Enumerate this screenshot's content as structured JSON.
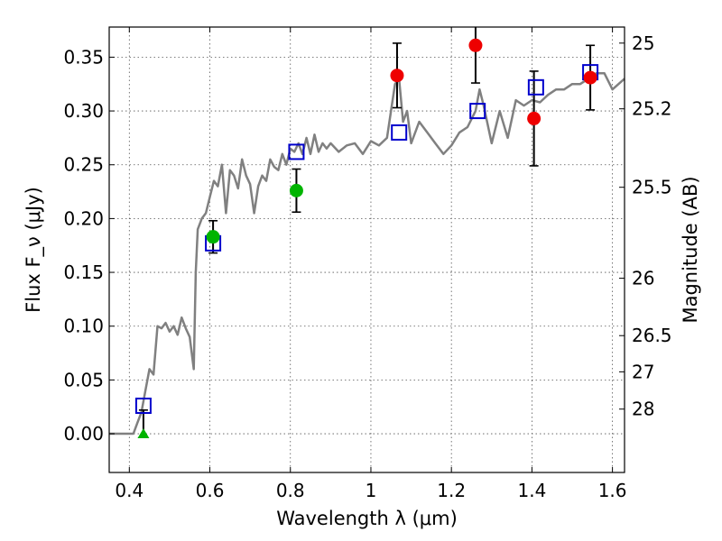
{
  "chart_data": {
    "type": "scatter",
    "xlabel": "Wavelength λ (μm)",
    "ylabel": "Flux F_ν (μJy)",
    "ylabel_right": "Magnitude (AB)",
    "xlim": [
      0.35,
      1.63
    ],
    "ylim": [
      -0.036,
      0.378
    ],
    "grid": true,
    "x_ticks": [
      0.4,
      0.6,
      0.8,
      1.0,
      1.2,
      1.4,
      1.6
    ],
    "x_tick_labels": [
      "0.4",
      "0.6",
      "0.8",
      "1",
      "1.2",
      "1.4",
      "1.6"
    ],
    "y_ticks": [
      0.0,
      0.05,
      0.1,
      0.15,
      0.2,
      0.25,
      0.3,
      0.35
    ],
    "y_tick_labels": [
      "0.00",
      "0.05",
      "0.10",
      "0.15",
      "0.20",
      "0.25",
      "0.30",
      "0.35"
    ],
    "mag_ticks": [
      25,
      25.2,
      25.5,
      26,
      26.5,
      27,
      28
    ],
    "mag_tick_labels": [
      "25",
      "25.2",
      "25.5",
      "26",
      "26.5",
      "27",
      "28"
    ],
    "colors": {
      "spectrum": "#808080",
      "model": "#0000cc",
      "green": "#00b400",
      "red": "#ee0000",
      "errorbar": "#000000"
    },
    "series": [
      {
        "kind": "spectrum",
        "x": [
          0.35,
          0.41,
          0.42,
          0.43,
          0.44,
          0.45,
          0.46,
          0.47,
          0.48,
          0.49,
          0.5,
          0.51,
          0.52,
          0.53,
          0.54,
          0.55,
          0.56,
          0.565,
          0.57,
          0.58,
          0.59,
          0.6,
          0.61,
          0.62,
          0.63,
          0.64,
          0.65,
          0.66,
          0.67,
          0.68,
          0.69,
          0.7,
          0.71,
          0.72,
          0.73,
          0.74,
          0.75,
          0.76,
          0.77,
          0.78,
          0.79,
          0.8,
          0.81,
          0.82,
          0.83,
          0.84,
          0.85,
          0.86,
          0.87,
          0.88,
          0.89,
          0.9,
          0.92,
          0.94,
          0.96,
          0.98,
          1.0,
          1.02,
          1.04,
          1.06,
          1.07,
          1.08,
          1.09,
          1.1,
          1.12,
          1.14,
          1.16,
          1.18,
          1.2,
          1.22,
          1.24,
          1.26,
          1.27,
          1.28,
          1.3,
          1.32,
          1.34,
          1.36,
          1.38,
          1.4,
          1.42,
          1.44,
          1.46,
          1.48,
          1.5,
          1.52,
          1.54,
          1.56,
          1.58,
          1.6,
          1.63
        ],
        "y": [
          0.0,
          0.0,
          0.01,
          0.02,
          0.04,
          0.06,
          0.055,
          0.1,
          0.098,
          0.103,
          0.095,
          0.1,
          0.092,
          0.108,
          0.098,
          0.09,
          0.06,
          0.15,
          0.19,
          0.2,
          0.205,
          0.22,
          0.235,
          0.23,
          0.25,
          0.205,
          0.245,
          0.24,
          0.228,
          0.255,
          0.24,
          0.232,
          0.205,
          0.23,
          0.24,
          0.235,
          0.255,
          0.248,
          0.245,
          0.26,
          0.25,
          0.265,
          0.262,
          0.27,
          0.26,
          0.275,
          0.26,
          0.278,
          0.262,
          0.27,
          0.265,
          0.27,
          0.262,
          0.268,
          0.27,
          0.26,
          0.272,
          0.268,
          0.275,
          0.325,
          0.33,
          0.29,
          0.3,
          0.27,
          0.29,
          0.28,
          0.27,
          0.26,
          0.268,
          0.28,
          0.285,
          0.3,
          0.32,
          0.305,
          0.27,
          0.3,
          0.275,
          0.31,
          0.305,
          0.31,
          0.308,
          0.315,
          0.32,
          0.32,
          0.325,
          0.325,
          0.33,
          0.335,
          0.335,
          0.32,
          0.33
        ]
      },
      {
        "kind": "model",
        "marker": "open-square",
        "x": [
          0.435,
          0.608,
          0.815,
          1.07,
          1.265,
          1.41,
          1.545
        ],
        "y": [
          0.026,
          0.177,
          0.262,
          0.28,
          0.3,
          0.322,
          0.336
        ]
      },
      {
        "kind": "observed",
        "marker": "circle",
        "x": [
          0.608,
          0.815,
          1.065,
          1.26,
          1.405,
          1.545
        ],
        "y": [
          0.183,
          0.226,
          0.333,
          0.361,
          0.293,
          0.331
        ],
        "yerr": [
          0.015,
          0.02,
          0.03,
          0.035,
          0.044,
          0.03
        ],
        "color_keys": [
          "green",
          "green",
          "red",
          "red",
          "red",
          "red"
        ]
      },
      {
        "kind": "upper-limit",
        "marker": "triangle",
        "x": [
          0.435
        ],
        "y": [
          0.0
        ],
        "y_top": [
          0.022
        ],
        "color_keys": [
          "green"
        ]
      }
    ]
  }
}
